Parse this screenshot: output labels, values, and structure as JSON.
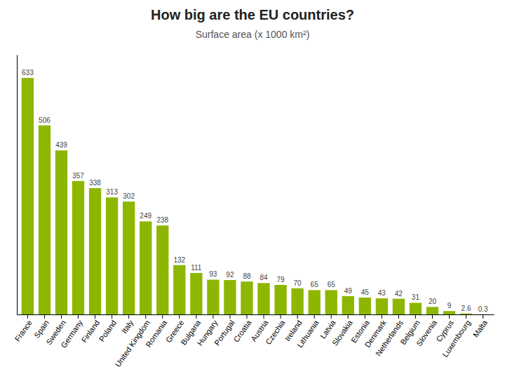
{
  "chart_data": {
    "type": "bar",
    "title": "How big are the EU countries?",
    "subtitle": "Surface area (x 1000 km²)",
    "categories": [
      "France",
      "Spain",
      "Sweden",
      "Germany",
      "Finland",
      "Poland",
      "Italy",
      "United Kingdom",
      "Romania",
      "Greece",
      "Bulgaria",
      "Hungary",
      "Portugal",
      "Croatia",
      "Austria",
      "Czechia",
      "Ireland",
      "Lithuania",
      "Latvia",
      "Slovakia",
      "Estonia",
      "Denmark",
      "Netherlands",
      "Belgium",
      "Slovenia",
      "Cyprus",
      "Luxembourg",
      "Malta"
    ],
    "values": [
      633,
      506,
      439,
      357,
      338,
      313,
      302,
      249,
      238,
      132,
      111,
      93,
      92,
      88,
      84,
      79,
      70,
      65,
      65,
      49,
      45,
      43,
      42,
      31,
      20,
      9,
      2.6,
      0.3
    ],
    "color": "#8DB600",
    "ylim": [
      0,
      695
    ],
    "grid": false,
    "data_labels": true,
    "tick_labels": "x"
  }
}
